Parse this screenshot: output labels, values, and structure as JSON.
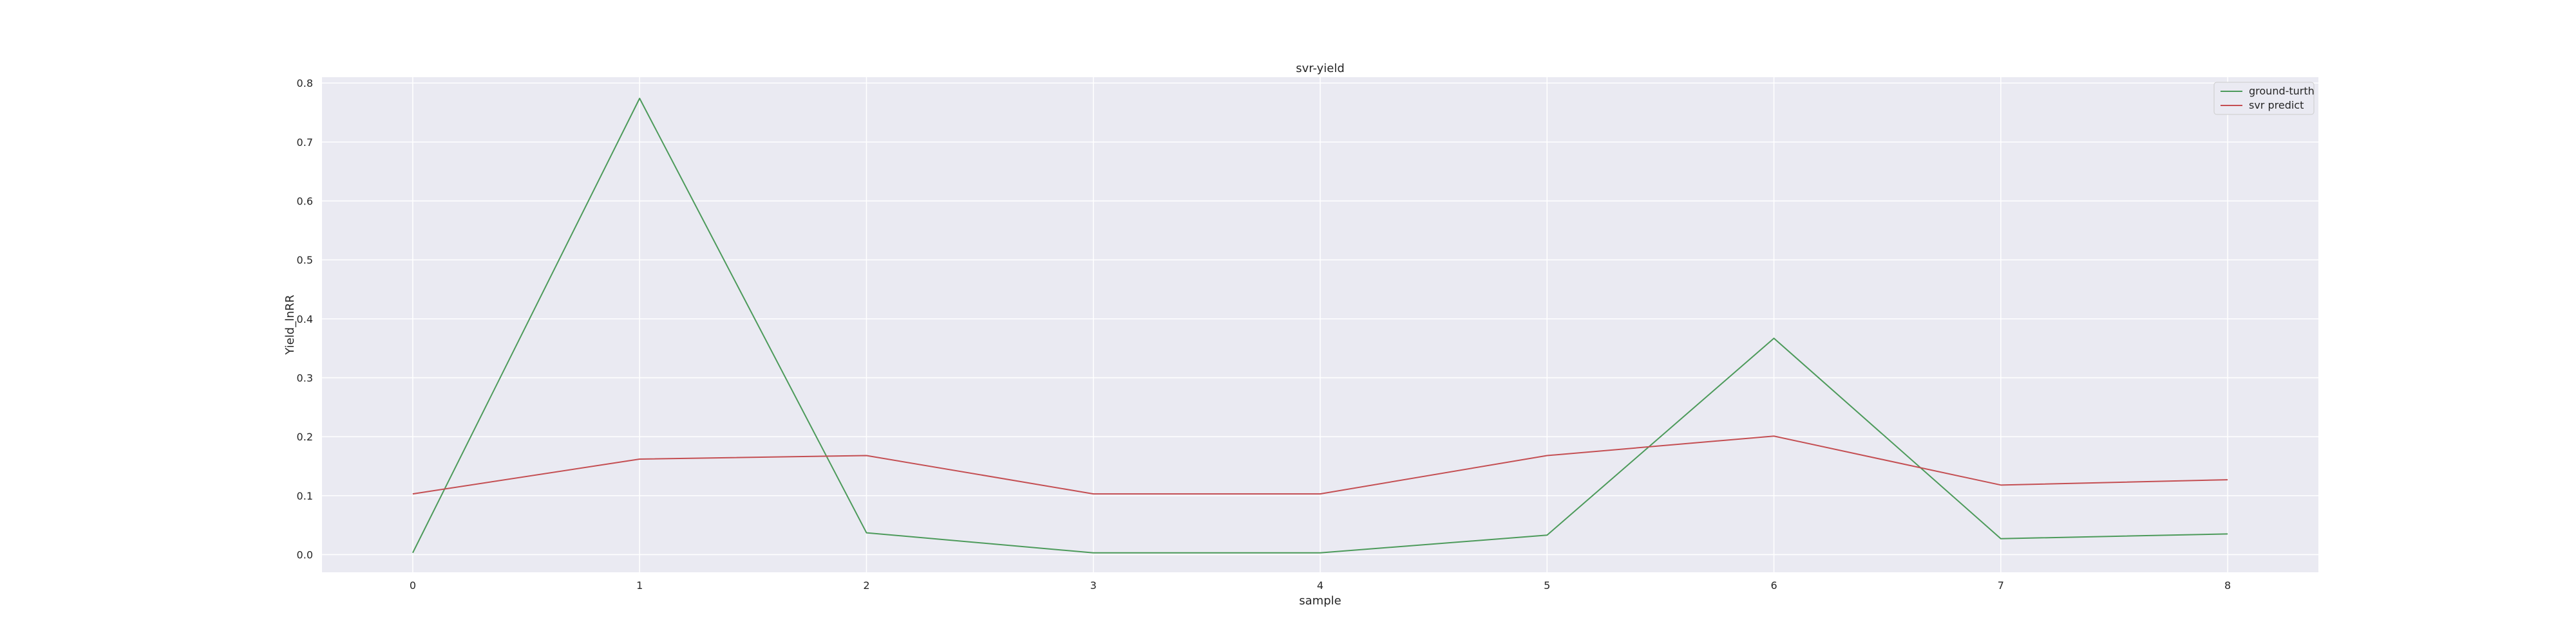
{
  "chart_data": {
    "type": "line",
    "title": "svr-yield",
    "xlabel": "sample",
    "ylabel": "Yield_lnRR",
    "x": [
      0,
      1,
      2,
      3,
      4,
      5,
      6,
      7,
      8
    ],
    "xticks": [
      "0",
      "1",
      "2",
      "3",
      "4",
      "5",
      "6",
      "7",
      "8"
    ],
    "yticks": [
      "0.0",
      "0.1",
      "0.2",
      "0.3",
      "0.4",
      "0.5",
      "0.6",
      "0.7",
      "0.8"
    ],
    "ylim": [
      -0.03,
      0.81
    ],
    "xlim": [
      -0.4,
      8.4
    ],
    "grid": true,
    "legend_position": "top-right",
    "series": [
      {
        "name": "ground-turth",
        "color": "#4c9a5a",
        "values": [
          0.003,
          0.774,
          0.037,
          0.003,
          0.003,
          0.033,
          0.367,
          0.027,
          0.035
        ]
      },
      {
        "name": "svr predict",
        "color": "#c44e52",
        "values": [
          0.103,
          0.162,
          0.168,
          0.103,
          0.103,
          0.168,
          0.201,
          0.118,
          0.127
        ]
      }
    ]
  },
  "colors": {
    "plot_background": "#eaeaf2",
    "grid": "#ffffff",
    "text": "#262626"
  }
}
